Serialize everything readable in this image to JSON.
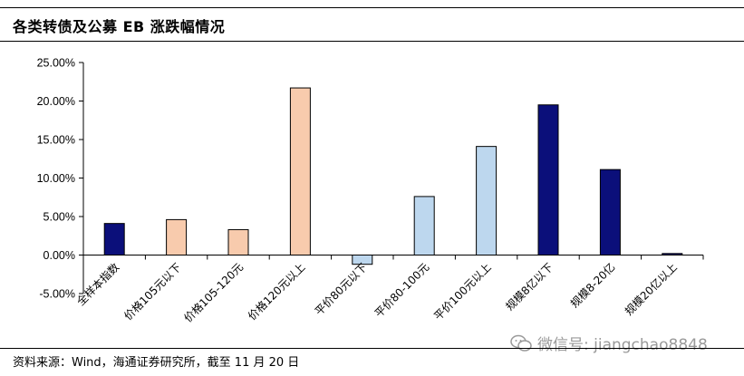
{
  "page": {
    "title": "各类转债及公募 EB 涨跌幅情况",
    "source": "资料来源：Wind，海通证券研究所，截至 11 月 20 日",
    "watermark": "微信号: jiangchao8848"
  },
  "colors": {
    "peach": "#F8CBAD",
    "light_blue": "#BDD7EE",
    "navy": "#0B0F7A",
    "first_bar": "#0B0F7A"
  },
  "chart_data": {
    "type": "bar",
    "title": "",
    "xlabel": "",
    "ylabel": "",
    "ylim": [
      -0.05,
      0.25
    ],
    "ytick_values": [
      -0.05,
      0,
      0.05,
      0.1,
      0.15,
      0.2,
      0.25
    ],
    "ytick_labels": [
      "-5.00%",
      "0.00%",
      "5.00%",
      "10.00%",
      "15.00%",
      "20.00%",
      "25.00%"
    ],
    "categories": [
      "全样本指数",
      "价格105元以下",
      "价格105-120元",
      "价格120元以上",
      "平价80元以下",
      "平价80-100元",
      "平价100元以上",
      "规模8亿以下",
      "规模8-20亿",
      "规模20亿以上"
    ],
    "values": [
      0.041,
      0.046,
      0.033,
      0.217,
      -0.012,
      0.076,
      0.141,
      0.195,
      0.111,
      0.002
    ],
    "bar_colors": [
      "navy",
      "peach",
      "peach",
      "peach",
      "light_blue",
      "light_blue",
      "light_blue",
      "navy",
      "navy",
      "navy"
    ],
    "grid": false,
    "legend": "none"
  }
}
